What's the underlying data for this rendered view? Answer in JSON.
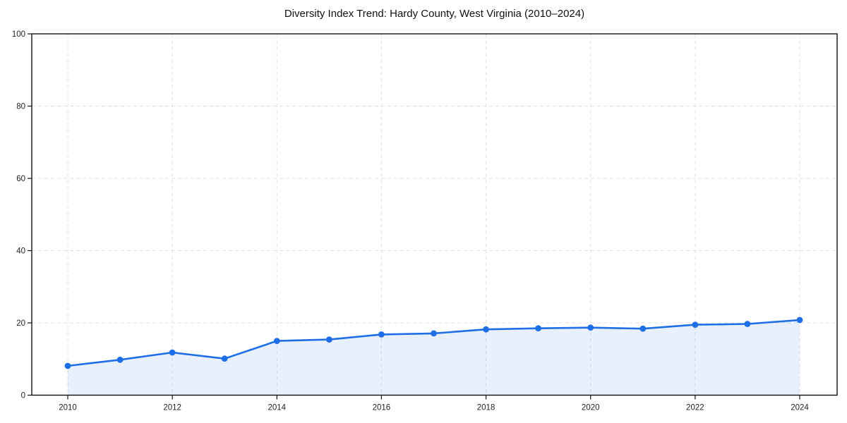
{
  "chart_data": {
    "type": "area",
    "title": "Diversity Index Trend: Hardy County, West Virginia (2010–2024)",
    "xlabel": "",
    "ylabel": "",
    "x": [
      2010,
      2011,
      2012,
      2013,
      2014,
      2015,
      2016,
      2017,
      2018,
      2019,
      2020,
      2021,
      2022,
      2023,
      2024
    ],
    "series": [
      {
        "name": "Diversity Index",
        "values": [
          8.1,
          9.8,
          11.8,
          10.1,
          15.0,
          15.4,
          16.8,
          17.1,
          18.2,
          18.5,
          18.7,
          18.4,
          19.5,
          19.7,
          20.8
        ]
      }
    ],
    "ylim": [
      0,
      100
    ],
    "yticks": [
      0,
      20,
      40,
      60,
      80,
      100
    ],
    "xticks": [
      2010,
      2012,
      2014,
      2016,
      2018,
      2020,
      2022,
      2024
    ],
    "grid": "dashed-both",
    "legend": "none",
    "marker": "circle",
    "line_color": "#1e6fe6",
    "fill_color": "#1e6fe6",
    "fill_opacity": 0.1,
    "grid_color": "#e1e1e1",
    "spine_color": "#111111",
    "tick_label_color": "#222222",
    "title_color": "#111111"
  }
}
